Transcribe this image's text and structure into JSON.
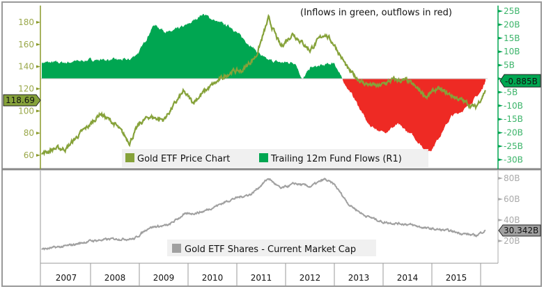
{
  "chart_data": [
    {
      "type": "line",
      "title": "Gold ETF Price Chart",
      "annotation": "(Inflows in green, outflows in red)",
      "x_tick_labels": [
        "2007",
        "2008",
        "2009",
        "2010",
        "2011",
        "2012",
        "2013",
        "2014",
        "2015"
      ],
      "xlim": [
        2007.0,
        2016.2
      ],
      "left_axis": {
        "ticks": [
          "60",
          "80",
          "100",
          "120",
          "140",
          "160",
          "180"
        ],
        "ylim": [
          50,
          195
        ],
        "last_value_label": "118.69"
      },
      "right_axis": {
        "ticks": [
          "25B",
          "20B",
          "15B",
          "10B",
          "5B",
          "0B",
          "-5B",
          "-10B",
          "-15B",
          "-20B",
          "-25B",
          "-30B"
        ],
        "ylim": [
          -32,
          27
        ],
        "last_value_label": "-0.885B"
      },
      "legend": [
        "Gold ETF Price Chart",
        "Trailing 12m Fund Flows (R1)"
      ],
      "legend_placement": "bottom-center",
      "series": [
        {
          "name": "Gold ETF Price Chart",
          "color": "#86a23a",
          "axis": "left",
          "x": [
            2007.0,
            2007.25,
            2007.5,
            2007.75,
            2008.0,
            2008.2,
            2008.5,
            2008.8,
            2009.0,
            2009.2,
            2009.5,
            2009.9,
            2010.1,
            2010.4,
            2010.9,
            2011.1,
            2011.4,
            2011.65,
            2011.9,
            2012.15,
            2012.5,
            2012.8,
            2013.0,
            2013.3,
            2013.6,
            2013.9,
            2014.2,
            2014.5,
            2014.9,
            2015.1,
            2015.5,
            2015.9,
            2016.1
          ],
          "values": [
            61,
            66,
            66,
            78,
            88,
            98,
            88,
            72,
            88,
            95,
            92,
            117,
            108,
            120,
            136,
            136,
            150,
            183,
            158,
            170,
            155,
            170,
            160,
            136,
            125,
            122,
            128,
            127,
            113,
            120,
            112,
            103,
            118.69
          ]
        },
        {
          "name": "Trailing 12m Fund Flows (R1)",
          "color": "#00a651",
          "negative_color": "#ee2a24",
          "axis": "right",
          "type": "area",
          "x": [
            2007.0,
            2007.5,
            2008.0,
            2008.5,
            2008.8,
            2009.0,
            2009.3,
            2009.6,
            2010.0,
            2010.3,
            2010.6,
            2010.9,
            2011.0,
            2011.3,
            2011.6,
            2011.9,
            2012.2,
            2012.35,
            2012.5,
            2012.8,
            2013.0,
            2013.15,
            2013.4,
            2013.7,
            2014.0,
            2014.3,
            2014.6,
            2014.9,
            2015.0,
            2015.4,
            2015.7,
            2016.0,
            2016.1
          ],
          "values": [
            6,
            6,
            7,
            7,
            7,
            10,
            20,
            17,
            20,
            24,
            21,
            19,
            17,
            12,
            7,
            6,
            6,
            -0.5,
            4,
            5,
            6,
            0,
            -7,
            -17,
            -20,
            -17,
            -21,
            -27,
            -26,
            -14,
            -11,
            -5,
            -0.885
          ]
        }
      ]
    },
    {
      "type": "line",
      "title": "Gold ETF Shares - Current Market Cap",
      "x_tick_labels": [
        "2007",
        "2008",
        "2009",
        "2010",
        "2011",
        "2012",
        "2013",
        "2014",
        "2015"
      ],
      "right_axis": {
        "ticks": [
          "80B",
          "60B",
          "40B",
          "20B"
        ],
        "ylim": [
          5,
          85
        ],
        "last_value_label": "30.342B"
      },
      "legend": [
        "Gold ETF Shares - Current Market Cap"
      ],
      "legend_placement": "bottom-center",
      "series": [
        {
          "name": "Gold ETF Shares - Current Market Cap",
          "color": "#a0a0a0",
          "x": [
            2007.0,
            2007.5,
            2008.0,
            2008.5,
            2008.9,
            2009.2,
            2009.6,
            2009.9,
            2010.3,
            2010.9,
            2011.3,
            2011.65,
            2011.9,
            2012.2,
            2012.5,
            2012.8,
            2013.0,
            2013.3,
            2013.6,
            2014.0,
            2014.5,
            2014.9,
            2015.3,
            2015.9,
            2016.1
          ],
          "values": [
            12,
            15,
            20,
            22,
            22,
            33,
            35,
            45,
            48,
            60,
            65,
            80,
            70,
            75,
            72,
            79,
            74,
            55,
            45,
            38,
            36,
            32,
            30,
            25,
            30.342
          ]
        }
      ]
    }
  ]
}
